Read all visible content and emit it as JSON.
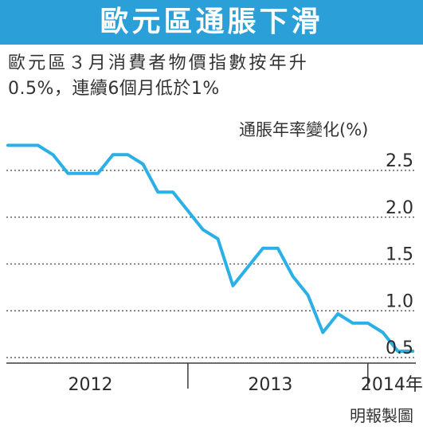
{
  "title": "歐元區通脹下滑",
  "subtitle_line1": "歐元區３月消費者物價指數按年升",
  "subtitle_line2": "0.5%，連續6個月低於1%",
  "source": "明報製圖",
  "colors": {
    "banner": "#2a9fd8",
    "line": "#2ab0e6",
    "axis": "#3a3a3a",
    "grid": "#444444"
  },
  "chart_data": {
    "type": "line",
    "title": "",
    "ylabel": "通脹年率變化(%)",
    "xlabel": "",
    "ylim": [
      0.4,
      2.6
    ],
    "yticks": [
      0.5,
      1.0,
      1.5,
      2.0,
      2.5
    ],
    "ytick_labels": [
      "0.5",
      "1.0",
      "1.5",
      "2.0",
      "2.5"
    ],
    "xlim": [
      0,
      27.2
    ],
    "x_tick_marks": [
      12,
      24
    ],
    "x_groups": [
      {
        "label": "2012",
        "center": 5.5
      },
      {
        "label": "2013",
        "center": 17.5
      },
      {
        "label": "2014年",
        "center": 25.6
      }
    ],
    "grid": "horizontal dotted",
    "legend": "none",
    "series": [
      {
        "name": "",
        "x": [
          0,
          1,
          2,
          3,
          4,
          5,
          6,
          7,
          8,
          9,
          10,
          11,
          12,
          13,
          14,
          15,
          16,
          17,
          18,
          19,
          20,
          21,
          22,
          23,
          24,
          25,
          26,
          27
        ],
        "values": [
          2.7,
          2.7,
          2.7,
          2.6,
          2.4,
          2.4,
          2.4,
          2.6,
          2.6,
          2.5,
          2.2,
          2.2,
          2.0,
          1.8,
          1.7,
          1.2,
          1.4,
          1.6,
          1.6,
          1.3,
          1.1,
          0.7,
          0.9,
          0.8,
          0.8,
          0.7,
          0.5,
          0.5
        ]
      }
    ]
  }
}
